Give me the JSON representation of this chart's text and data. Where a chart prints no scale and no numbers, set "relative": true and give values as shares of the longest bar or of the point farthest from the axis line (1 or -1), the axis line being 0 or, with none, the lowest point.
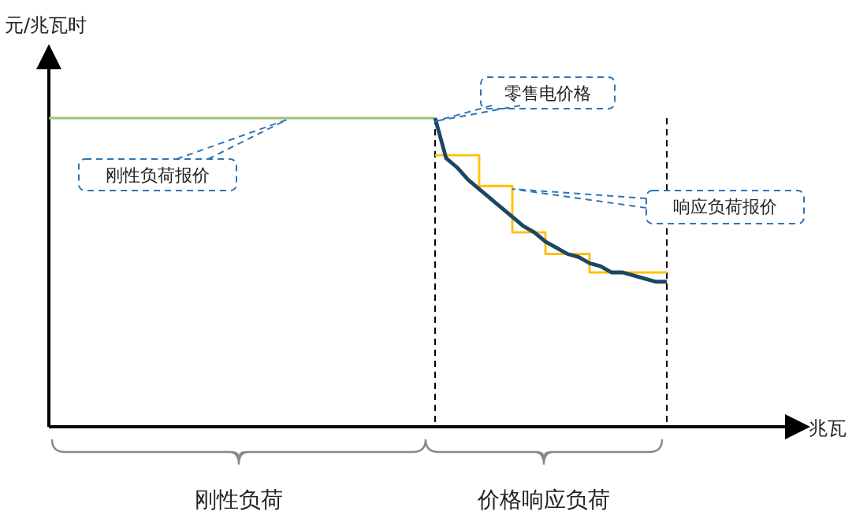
{
  "chart_data": {
    "type": "line",
    "relative": true,
    "ylabel": "元/兆瓦时",
    "xlabel": "兆瓦",
    "categories": [
      null,
      null,
      null,
      null,
      null,
      null,
      null,
      null,
      null,
      null,
      null,
      null,
      null,
      null,
      null,
      null,
      null,
      null,
      null,
      null,
      null,
      null,
      null,
      null,
      null,
      null,
      null,
      null,
      null,
      null,
      null,
      null,
      null,
      null,
      null,
      null,
      null,
      null,
      null,
      null,
      null,
      null,
      null,
      null,
      null,
      null,
      null,
      null,
      null,
      null,
      null,
      null,
      null,
      null,
      null,
      null,
      null,
      null,
      null,
      null,
      null,
      null,
      null,
      null,
      null,
      null,
      null,
      null,
      null
    ],
    "series": [
      {
        "type": "line",
        "color": "#9bc47a",
        "values": [
          1,
          1,
          1,
          1,
          1,
          1,
          1,
          1,
          1,
          1,
          1,
          1,
          1,
          1,
          1,
          1,
          1,
          1,
          1,
          1,
          1,
          1,
          1,
          1,
          1,
          1,
          1,
          1,
          1,
          1,
          1,
          1,
          1,
          1,
          1,
          1,
          null,
          null,
          null,
          null,
          null,
          null,
          null,
          null,
          null,
          null,
          null,
          null,
          null,
          null,
          null,
          null,
          null,
          null,
          null,
          null,
          null,
          null,
          null,
          null,
          null,
          null,
          null,
          null,
          null,
          null,
          null,
          null,
          null
        ]
      },
      {
        "type": "step",
        "color": "#ffc000",
        "values": [
          null,
          null,
          null,
          null,
          null,
          null,
          null,
          null,
          null,
          null,
          null,
          null,
          null,
          null,
          null,
          null,
          null,
          null,
          null,
          null,
          null,
          null,
          null,
          null,
          null,
          null,
          null,
          null,
          null,
          null,
          null,
          null,
          null,
          null,
          null,
          0.88,
          0.88,
          0.88,
          0.88,
          0.78,
          0.78,
          0.78,
          0.63,
          0.63,
          0.63,
          0.56,
          0.56,
          0.56,
          0.56,
          0.5,
          0.5,
          0.5,
          0.5,
          0.5,
          0.5,
          0.5,
          0.5,
          null,
          null,
          null,
          null,
          null,
          null,
          null,
          null,
          null,
          null,
          null,
          null
        ]
      },
      {
        "type": "line",
        "color": "#1b4765",
        "values": [
          null,
          null,
          null,
          null,
          null,
          null,
          null,
          null,
          null,
          null,
          null,
          null,
          null,
          null,
          null,
          null,
          null,
          null,
          null,
          null,
          null,
          null,
          null,
          null,
          null,
          null,
          null,
          null,
          null,
          null,
          null,
          null,
          null,
          null,
          null,
          1,
          0.87,
          0.84,
          0.8,
          0.77,
          0.74,
          0.71,
          0.68,
          0.65,
          0.63,
          0.6,
          0.58,
          0.56,
          0.55,
          0.53,
          0.52,
          0.5,
          0.5,
          0.49,
          0.48,
          0.47,
          0.47,
          null,
          null,
          null,
          null,
          null,
          null,
          null,
          null,
          null,
          null,
          null,
          null
        ]
      }
    ],
    "annotations": [
      "零售电价格",
      "刚性负荷报价",
      "响应负荷报价",
      "刚性负荷",
      "价格响应负荷"
    ]
  }
}
